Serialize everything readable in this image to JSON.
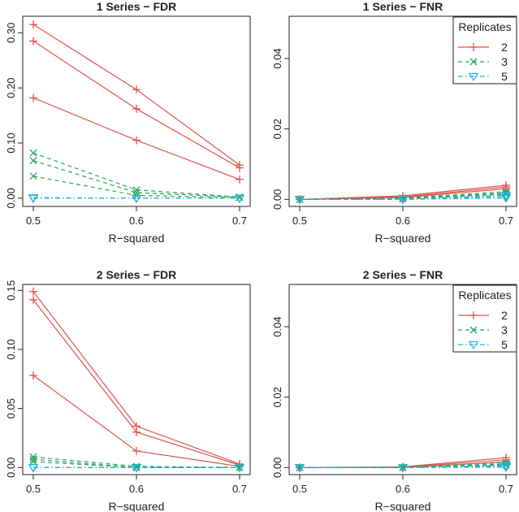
{
  "figure": {
    "description_colors": {
      "rep2": "#e0534f",
      "rep3": "#2aa65a",
      "rep5": "#22b5d6"
    }
  },
  "chart_data": [
    {
      "type": "line",
      "title": "1 Series − FDR",
      "xlabel": "R−squared",
      "ylabel": "",
      "x": [
        0.5,
        0.6,
        0.7
      ],
      "xticks": [
        "0.5",
        "0.6",
        "0.7"
      ],
      "ylim": [
        -0.015,
        0.33
      ],
      "yticks": [
        0.0,
        0.1,
        0.2,
        0.3
      ],
      "ytick_labels": [
        "0.00",
        "0.10",
        "0.20",
        "0.30"
      ],
      "legend": null,
      "series": [
        {
          "name": "2",
          "group": "2",
          "values": [
            0.315,
            0.197,
            0.06
          ]
        },
        {
          "name": "2",
          "group": "2",
          "values": [
            0.285,
            0.162,
            0.055
          ]
        },
        {
          "name": "2",
          "group": "2",
          "values": [
            0.182,
            0.105,
            0.034
          ]
        },
        {
          "name": "3",
          "group": "3",
          "values": [
            0.082,
            0.015,
            0.002
          ]
        },
        {
          "name": "3",
          "group": "3",
          "values": [
            0.068,
            0.01,
            0.002
          ]
        },
        {
          "name": "3",
          "group": "3",
          "values": [
            0.04,
            0.005,
            0.001
          ]
        },
        {
          "name": "5",
          "group": "5",
          "values": [
            0.001,
            0.0,
            0.0
          ]
        },
        {
          "name": "5",
          "group": "5",
          "values": [
            0.0,
            0.0,
            0.0
          ]
        },
        {
          "name": "5",
          "group": "5",
          "values": [
            0.0,
            0.0,
            0.0
          ]
        }
      ]
    },
    {
      "type": "line",
      "title": "1 Series − FNR",
      "xlabel": "R−squared",
      "ylabel": "",
      "x": [
        0.5,
        0.6,
        0.7
      ],
      "xticks": [
        "0.5",
        "0.6",
        "0.7"
      ],
      "ylim": [
        -0.002,
        0.052
      ],
      "yticks": [
        0.0,
        0.02,
        0.04
      ],
      "ytick_labels": [
        "0.00",
        "0.02",
        "0.04"
      ],
      "legend": {
        "title": "Replicates",
        "items": [
          "2",
          "3",
          "5"
        ],
        "position": "top-right"
      },
      "series": [
        {
          "name": "2",
          "group": "2",
          "values": [
            0.0,
            0.001,
            0.004
          ]
        },
        {
          "name": "2",
          "group": "2",
          "values": [
            0.0,
            0.0007,
            0.0035
          ]
        },
        {
          "name": "2",
          "group": "2",
          "values": [
            0.0,
            0.0005,
            0.003
          ]
        },
        {
          "name": "3",
          "group": "3",
          "values": [
            0.0,
            0.0004,
            0.0022
          ]
        },
        {
          "name": "3",
          "group": "3",
          "values": [
            0.0,
            0.0002,
            0.0018
          ]
        },
        {
          "name": "3",
          "group": "3",
          "values": [
            0.0,
            0.0001,
            0.0015
          ]
        },
        {
          "name": "5",
          "group": "5",
          "values": [
            0.0,
            0.0,
            0.0012
          ]
        },
        {
          "name": "5",
          "group": "5",
          "values": [
            0.0,
            0.0,
            0.0008
          ]
        },
        {
          "name": "5",
          "group": "5",
          "values": [
            0.0,
            0.0,
            0.0004
          ]
        }
      ]
    },
    {
      "type": "line",
      "title": "2 Series − FDR",
      "xlabel": "R−squared",
      "ylabel": "",
      "x": [
        0.5,
        0.6,
        0.7
      ],
      "xticks": [
        "0.5",
        "0.6",
        "0.7"
      ],
      "ylim": [
        -0.006,
        0.155
      ],
      "yticks": [
        0.0,
        0.05,
        0.1,
        0.15
      ],
      "ytick_labels": [
        "0.00",
        "0.05",
        "0.10",
        "0.15"
      ],
      "legend": null,
      "series": [
        {
          "name": "2",
          "group": "2",
          "values": [
            0.149,
            0.035,
            0.003
          ]
        },
        {
          "name": "2",
          "group": "2",
          "values": [
            0.142,
            0.03,
            0.002
          ]
        },
        {
          "name": "2",
          "group": "2",
          "values": [
            0.078,
            0.014,
            0.001
          ]
        },
        {
          "name": "3",
          "group": "3",
          "values": [
            0.009,
            0.001,
            0.0
          ]
        },
        {
          "name": "3",
          "group": "3",
          "values": [
            0.007,
            0.0,
            0.0
          ]
        },
        {
          "name": "3",
          "group": "3",
          "values": [
            0.005,
            0.0,
            0.0
          ]
        },
        {
          "name": "5",
          "group": "5",
          "values": [
            0.0,
            0.0,
            0.0
          ]
        },
        {
          "name": "5",
          "group": "5",
          "values": [
            0.0,
            0.0,
            0.0
          ]
        },
        {
          "name": "5",
          "group": "5",
          "values": [
            0.0,
            0.0,
            0.0
          ]
        }
      ]
    },
    {
      "type": "line",
      "title": "2 Series − FNR",
      "xlabel": "R−squared",
      "ylabel": "",
      "x": [
        0.5,
        0.6,
        0.7
      ],
      "xticks": [
        "0.5",
        "0.6",
        "0.7"
      ],
      "ylim": [
        -0.002,
        0.052
      ],
      "yticks": [
        0.0,
        0.02,
        0.04
      ],
      "ytick_labels": [
        "0.00",
        "0.02",
        "0.04"
      ],
      "legend": {
        "title": "Replicates",
        "items": [
          "2",
          "3",
          "5"
        ],
        "position": "top-right"
      },
      "series": [
        {
          "name": "2",
          "group": "2",
          "values": [
            0.0,
            0.0002,
            0.0028
          ]
        },
        {
          "name": "2",
          "group": "2",
          "values": [
            0.0,
            0.0001,
            0.0022
          ]
        },
        {
          "name": "2",
          "group": "2",
          "values": [
            0.0,
            0.0,
            0.0016
          ]
        },
        {
          "name": "3",
          "group": "3",
          "values": [
            0.0,
            0.0001,
            0.0014
          ]
        },
        {
          "name": "3",
          "group": "3",
          "values": [
            0.0,
            0.0,
            0.001
          ]
        },
        {
          "name": "3",
          "group": "3",
          "values": [
            0.0,
            0.0,
            0.0007
          ]
        },
        {
          "name": "5",
          "group": "5",
          "values": [
            0.0,
            0.0,
            0.0006
          ]
        },
        {
          "name": "5",
          "group": "5",
          "values": [
            0.0,
            0.0,
            0.0003
          ]
        },
        {
          "name": "5",
          "group": "5",
          "values": [
            0.0,
            0.0,
            0.0001
          ]
        }
      ]
    }
  ]
}
